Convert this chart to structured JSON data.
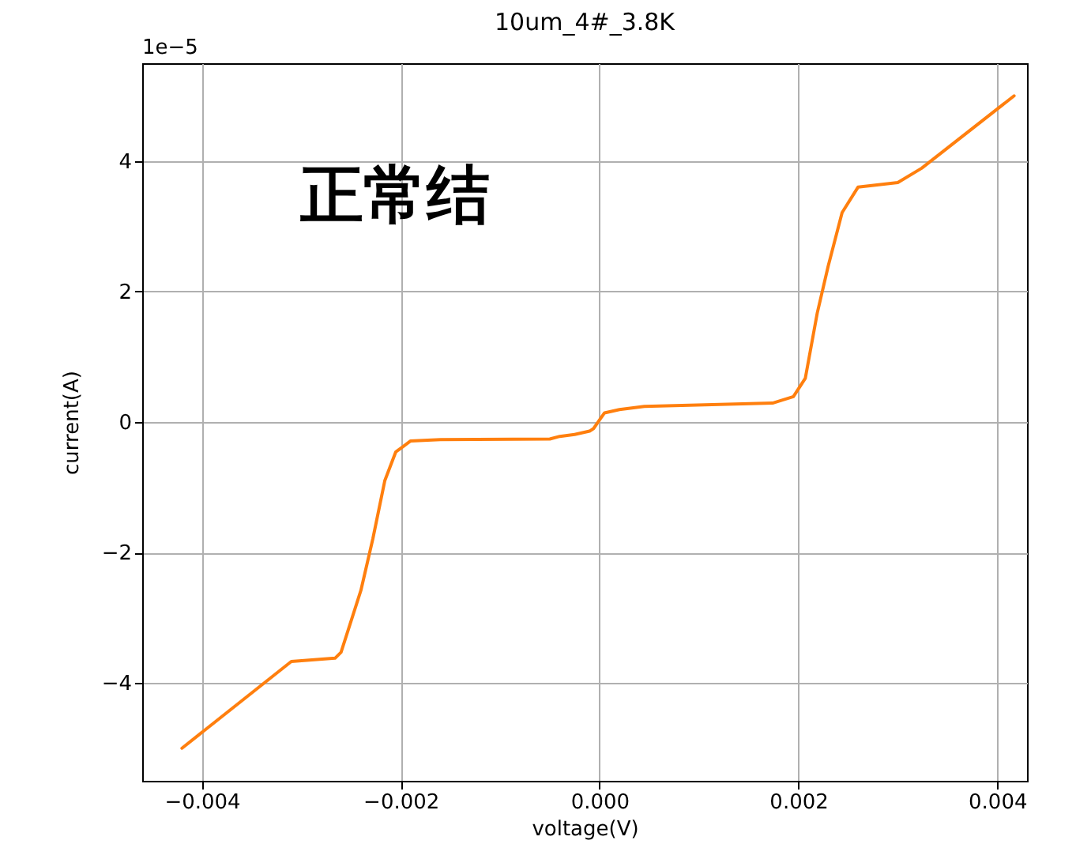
{
  "chart_data": {
    "type": "line",
    "title": "10um_4#_3.8K",
    "xlabel": "voltage(V)",
    "ylabel": "current(A)",
    "annotations": [
      "1e−5",
      "正常结"
    ],
    "series": [
      {
        "color": "#ff7f0e",
        "x": [
          -0.0042,
          -0.0031,
          -0.00266,
          -0.0026,
          -0.0024,
          -0.00228,
          -0.00216,
          -0.00205,
          -0.0019,
          -0.0016,
          -0.0005,
          -0.0004,
          -0.00025,
          -0.0001,
          -6e-05,
          5e-05,
          0.0002,
          0.00045,
          0.00174,
          0.00195,
          0.00207,
          0.00219,
          0.0023,
          0.00244,
          0.0026,
          0.003,
          0.00324,
          0.00417
        ],
        "values": [
          -5.0,
          -3.67,
          -3.62,
          -3.53,
          -2.58,
          -1.79,
          -0.9,
          -0.46,
          -0.29,
          -0.27,
          -0.26,
          -0.22,
          -0.19,
          -0.14,
          -0.1,
          0.14,
          0.19,
          0.24,
          0.29,
          0.39,
          0.67,
          1.67,
          2.39,
          3.21,
          3.6,
          3.67,
          3.89,
          5.0
        ]
      }
    ],
    "xlim": [
      -0.0046,
      0.0043
    ],
    "ylim": [
      -5.5,
      5.5
    ],
    "xticks": [
      {
        "value": -0.004,
        "label": "−0.004"
      },
      {
        "value": -0.002,
        "label": "−0.002"
      },
      {
        "value": 0,
        "label": "0.000"
      },
      {
        "value": 0.002,
        "label": "0.002"
      },
      {
        "value": 0.004,
        "label": "0.004"
      }
    ],
    "yticks": [
      {
        "value": -4,
        "label": "−4"
      },
      {
        "value": -2,
        "label": "−2"
      },
      0,
      2,
      4
    ],
    "grid": true,
    "line_style": "solid",
    "marker": "none"
  }
}
